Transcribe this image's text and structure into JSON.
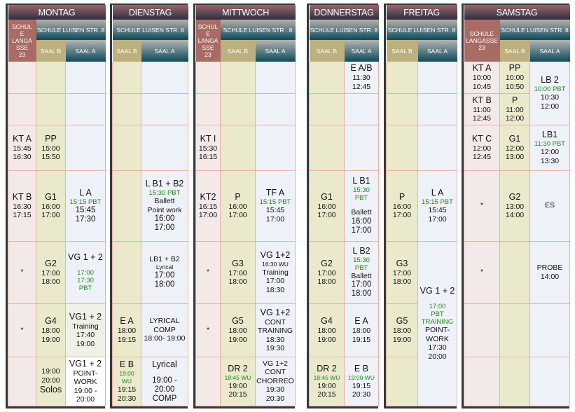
{
  "colors": {
    "day_header": "#2d2f42",
    "school_header": "#0c4b5c",
    "langasse": "#a86c65",
    "saal_b": "#bdb07f",
    "green_text": "#1f8a1f"
  },
  "labels": {
    "langasse_multi": "SCHUL E LANGA SSE 23",
    "langasse": "SCHULE LANGASSE 23",
    "luisen": "SCHULE LUISEN STR. 8",
    "luisen_mi": "SCHULE LUISEN STR . 8",
    "saal_b": "SAAL B",
    "saal_a": "SAAL A"
  },
  "days": [
    {
      "name": "MONTAG",
      "langasse": "SCHUL|E|LANGA|SSE|23",
      "luisen": "SCHULE LUISEN STR. 8",
      "rows": [
        [
          [],
          [],
          []
        ],
        [
          [],
          [],
          []
        ],
        [
          [
            [
              "KT A",
              "T"
            ],
            [
              "15:45",
              "n"
            ],
            [
              "16:30",
              "n"
            ]
          ],
          [
            [
              "PP",
              "T"
            ],
            [
              "15:00",
              "n"
            ],
            [
              "15:50",
              "n"
            ]
          ],
          []
        ],
        [
          [
            [
              "KT B",
              "T"
            ],
            [
              "16:30",
              "n"
            ],
            [
              "17:15",
              "n"
            ]
          ],
          [
            [
              "G1",
              "T"
            ],
            [
              "16:00",
              "n"
            ],
            [
              "17:00",
              "n"
            ]
          ],
          [
            [
              "L A",
              "T"
            ],
            [
              "15:15 PBT",
              "g"
            ],
            [
              "15:45",
              "b"
            ],
            [
              "17:30",
              "b"
            ]
          ]
        ],
        [
          [
            [
              "*",
              "n"
            ]
          ],
          [
            [
              "G2",
              "T"
            ],
            [
              "17:00",
              "n"
            ],
            [
              "18:00",
              "n"
            ]
          ],
          [
            [
              "VG 1 + 2",
              "T"
            ],
            [
              "",
              "gap"
            ],
            [
              "17:00",
              "g"
            ],
            [
              "17:30",
              "g"
            ],
            [
              "PBT",
              "g"
            ]
          ]
        ],
        [
          [
            [
              "*",
              "n"
            ]
          ],
          [
            [
              "G4",
              "T"
            ],
            [
              "18:00",
              "n"
            ],
            [
              "19:00",
              "n"
            ]
          ],
          [
            [
              "VG1 + 2",
              "T"
            ],
            [
              "Training",
              "n"
            ],
            [
              "17:40",
              "n"
            ],
            [
              "19:00",
              "n"
            ]
          ]
        ],
        [
          [],
          [
            [
              "19:00",
              "n"
            ],
            [
              "20:00",
              "n"
            ],
            [
              "Solos",
              "T"
            ]
          ],
          [
            [
              "VG1 + 2",
              "T"
            ],
            [
              "POINT-",
              "n"
            ],
            [
              "WORK",
              "n"
            ],
            [
              "19:00 -",
              "n"
            ],
            [
              "20:00",
              "n"
            ]
          ]
        ]
      ]
    },
    {
      "name": "DIENSTAG",
      "luisen": "SCHULE LUISEN STR. 8",
      "rows": [
        [
          [],
          []
        ],
        [
          [],
          []
        ],
        [
          [],
          []
        ],
        [
          [],
          [
            [
              "L B1 + B2",
              "T"
            ],
            [
              "15:30 PBT",
              "g"
            ],
            [
              "Ballett",
              "n"
            ],
            [
              "Point work",
              "n"
            ],
            [
              "16:00",
              "b"
            ],
            [
              "17:00",
              "b"
            ]
          ]
        ],
        [
          [],
          [
            [
              "LB1 + B2",
              "n"
            ],
            [
              "Lyrical",
              "s"
            ],
            [
              "17:00",
              "b"
            ],
            [
              "18:00",
              "b"
            ]
          ]
        ],
        [
          [
            [
              "E A",
              "T"
            ],
            [
              "18:00",
              "n"
            ],
            [
              "19:15",
              "n"
            ]
          ],
          [
            [
              "LYRICAL",
              "n"
            ],
            [
              "COMP",
              "n"
            ],
            [
              "18:00- 19:00",
              "n"
            ]
          ]
        ],
        [
          [
            [
              "E B",
              "T"
            ],
            [
              "19:00",
              "gs"
            ],
            [
              "WU",
              "gs"
            ],
            [
              "19:15",
              "n"
            ],
            [
              "20:30",
              "n"
            ]
          ],
          [
            [
              "Lyrical",
              "T"
            ],
            [
              "",
              "gap"
            ],
            [
              "19:00 -",
              "b"
            ],
            [
              "20:00",
              "b"
            ],
            [
              "COMP",
              "b"
            ]
          ]
        ]
      ]
    },
    {
      "name": "MITTWOCH",
      "langasse": "SCHUL|E|LANGA|SSE|23",
      "luisen": "SCHULE LUISEN STR . 8",
      "rows": [
        [
          [],
          [],
          []
        ],
        [
          [],
          [],
          []
        ],
        [
          [
            [
              "KT I",
              "T"
            ],
            [
              "15:30",
              "n"
            ],
            [
              "16:15",
              "n"
            ]
          ],
          [],
          []
        ],
        [
          [
            [
              "KT2",
              "T"
            ],
            [
              "16:15",
              "n"
            ],
            [
              "17:00",
              "n"
            ]
          ],
          [
            [
              "P",
              "T"
            ],
            [
              "16:00",
              "n"
            ],
            [
              "17:00",
              "n"
            ]
          ],
          [
            [
              "TF A",
              "T"
            ],
            [
              "15:15 PBT",
              "g"
            ],
            [
              "15:45",
              "n"
            ],
            [
              "17:00",
              "n"
            ]
          ]
        ],
        [
          [
            [
              "*",
              "n"
            ]
          ],
          [
            [
              "G3",
              "T"
            ],
            [
              "17:00",
              "n"
            ],
            [
              "18:00",
              "n"
            ]
          ],
          [
            [
              "VG 1+2",
              "T"
            ],
            [
              "16:30 WU",
              "s"
            ],
            [
              "Training",
              "n"
            ],
            [
              "17:00",
              "n"
            ],
            [
              "18:30",
              "n"
            ]
          ]
        ],
        [
          [
            [
              "*",
              "n"
            ]
          ],
          [
            [
              "G5",
              "T"
            ],
            [
              "18:00",
              "n"
            ],
            [
              "19:00",
              "n"
            ]
          ],
          [
            [
              "VG 1+2",
              "T"
            ],
            [
              "CONT",
              "n"
            ],
            [
              "TRAINING",
              "n"
            ],
            [
              "18:30",
              "n"
            ],
            [
              "19:30",
              "n"
            ]
          ]
        ],
        [
          [],
          [
            [
              "DR 2",
              "T"
            ],
            [
              "18:45 WU",
              "gs"
            ],
            [
              "19:00",
              "n"
            ],
            [
              "20:15",
              "n"
            ]
          ],
          [
            [
              "VG 1+2",
              "n"
            ],
            [
              "CONT",
              "n"
            ],
            [
              "CHORREO",
              "n"
            ],
            [
              "19:30",
              "n"
            ],
            [
              "20:30",
              "n"
            ]
          ]
        ]
      ]
    },
    {
      "name": "DONNERSTAG",
      "luisen": "SCHULE LUISEN STR. 8",
      "rows": [
        [
          [],
          [
            [
              "E A/B",
              "T"
            ],
            [
              "11:30",
              "n"
            ],
            [
              "12:45",
              "n"
            ]
          ]
        ],
        [
          [],
          []
        ],
        [
          [],
          []
        ],
        [
          [
            [
              "G1",
              "T"
            ],
            [
              "16:00",
              "n"
            ],
            [
              "17:00",
              "n"
            ]
          ],
          [
            [
              "L B1",
              "T"
            ],
            [
              "15:30",
              "g"
            ],
            [
              "PBT",
              "g"
            ],
            [
              "",
              "gap"
            ],
            [
              "Ballett",
              "n"
            ],
            [
              "16:00",
              "b"
            ],
            [
              "17:00",
              "b"
            ]
          ]
        ],
        [
          [
            [
              "G2",
              "T"
            ],
            [
              "17:00",
              "n"
            ],
            [
              "18:00",
              "n"
            ]
          ],
          [
            [
              "L B2",
              "T"
            ],
            [
              "15:30",
              "g"
            ],
            [
              "PBT",
              "g"
            ],
            [
              "Ballett",
              "n"
            ],
            [
              "17:00",
              "b"
            ],
            [
              "18:00",
              "b"
            ]
          ]
        ],
        [
          [
            [
              "G4",
              "T"
            ],
            [
              "18:00",
              "n"
            ],
            [
              "19:00",
              "n"
            ]
          ],
          [
            [
              "E A",
              "T"
            ],
            [
              "18:00",
              "n"
            ],
            [
              "19:15",
              "n"
            ]
          ]
        ],
        [
          [
            [
              "DR 2",
              "T"
            ],
            [
              "18:45 WU",
              "gs"
            ],
            [
              "19:00",
              "n"
            ],
            [
              "20:15",
              "n"
            ]
          ],
          [
            [
              "E B",
              "T"
            ],
            [
              "19:00 WU",
              "gs"
            ],
            [
              "19:15",
              "n"
            ],
            [
              "20:30",
              "n"
            ]
          ]
        ]
      ]
    },
    {
      "name": "FREITAG",
      "luisen": "SCHULE LUISEN STR. 8",
      "rows": [
        [
          [],
          []
        ],
        [
          [],
          []
        ],
        [
          [],
          []
        ],
        [
          [
            [
              "P",
              "T"
            ],
            [
              "16:00",
              "n"
            ],
            [
              "17:00",
              "n"
            ]
          ],
          [
            [
              "L A",
              "T"
            ],
            [
              "15:15 PBT",
              "g"
            ],
            [
              "15:45",
              "n"
            ],
            [
              "17:00",
              "n"
            ]
          ]
        ],
        [
          [
            [
              "G3",
              "T"
            ],
            [
              "17:00",
              "n"
            ],
            [
              "18:00",
              "n"
            ]
          ],
          [
            [
              "VG 1 + 2",
              "T"
            ],
            [
              "",
              "gap"
            ],
            [
              "17:00",
              "g"
            ],
            [
              "PBT",
              "g"
            ],
            [
              "TRAINING",
              "g"
            ],
            [
              "POINT-",
              "n"
            ],
            [
              "WORK",
              "n"
            ],
            [
              "17:30",
              "n"
            ],
            [
              "20:00",
              "n"
            ]
          ]
        ],
        [
          [
            [
              "G5",
              "T"
            ],
            [
              "18:00",
              "n"
            ],
            [
              "19:00",
              "n"
            ]
          ],
          null
        ],
        [
          [],
          null
        ]
      ]
    },
    {
      "name": "SAMSTAG",
      "langasse": "SCHULE|LANGASSE|23",
      "luisen": "SCHULE LUISEN STR. 8",
      "rows": [
        [
          [
            [
              "KT A",
              "T"
            ],
            [
              "10:00",
              "n"
            ],
            [
              "10:45",
              "n"
            ]
          ],
          [
            [
              "PP",
              "T"
            ],
            [
              "10:00",
              "n"
            ],
            [
              "10:50",
              "n"
            ]
          ],
          [
            [
              "LB 2",
              "T"
            ],
            [
              "10:00 PBT",
              "g"
            ],
            [
              "10:30",
              "n"
            ],
            [
              "12:00",
              "n"
            ]
          ]
        ],
        [
          [
            [
              "KT B",
              "T"
            ],
            [
              "11:00",
              "n"
            ],
            [
              "12:45",
              "n"
            ]
          ],
          [
            [
              "P",
              "T"
            ],
            [
              "11:00",
              "n"
            ],
            [
              "12:00",
              "n"
            ]
          ],
          null
        ],
        [
          [
            [
              "KT C",
              "T"
            ],
            [
              "12:00",
              "n"
            ],
            [
              "12:45",
              "n"
            ]
          ],
          [
            [
              "G1",
              "T"
            ],
            [
              "12:00",
              "n"
            ],
            [
              "13:00",
              "n"
            ]
          ],
          [
            [
              "LB1",
              "T"
            ],
            [
              "11:30 PBT",
              "g"
            ],
            [
              "12:00",
              "n"
            ],
            [
              "13:30",
              "n"
            ]
          ]
        ],
        [
          [
            [
              "*",
              "n"
            ]
          ],
          [
            [
              "G2",
              "T"
            ],
            [
              "13:00",
              "n"
            ],
            [
              "14:00",
              "n"
            ]
          ],
          [
            [
              "ES",
              "n"
            ]
          ]
        ],
        [
          [
            [
              "*",
              "n"
            ]
          ],
          [],
          [
            [
              "PROBE",
              "n"
            ],
            [
              "14:00",
              "n"
            ]
          ]
        ],
        [
          [],
          [],
          []
        ],
        [
          [],
          [],
          []
        ]
      ]
    }
  ]
}
